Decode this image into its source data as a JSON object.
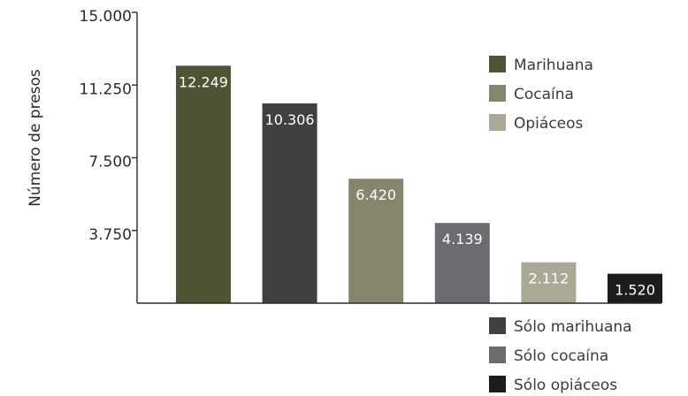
{
  "chart_data": {
    "type": "bar",
    "ylabel": "Número de presos",
    "ylim": [
      0,
      15000
    ],
    "yticks": [
      {
        "value": 3750,
        "label": "3.750"
      },
      {
        "value": 7500,
        "label": "7.500"
      },
      {
        "value": 11250,
        "label": "11.250"
      },
      {
        "value": 15000,
        "label": "15.000"
      }
    ],
    "bars": [
      {
        "value": 12249,
        "label": "12.249",
        "series": "Marihuana",
        "color": "#4e5535"
      },
      {
        "value": 10306,
        "label": "10.306",
        "series": "Sólo marihuana",
        "color": "#3f4042"
      },
      {
        "value": 6420,
        "label": "6.420",
        "series": "Cocaína",
        "color": "#86866f"
      },
      {
        "value": 4139,
        "label": "4.139",
        "series": "Sólo cocaína",
        "color": "#6b6c6f"
      },
      {
        "value": 2112,
        "label": "2.112",
        "series": "Opiáceos",
        "color": "#a9a995"
      },
      {
        "value": 1520,
        "label": "1.520",
        "series": "Sólo opiáceos",
        "color": "#1d1d1f"
      }
    ],
    "legend_top": [
      {
        "name": "Marihuana",
        "color": "#4e5535"
      },
      {
        "name": "Cocaína",
        "color": "#86866f"
      },
      {
        "name": "Opiáceos",
        "color": "#a9a995"
      }
    ],
    "legend_bottom": [
      {
        "name": "Sólo marihuana",
        "color": "#3f4042"
      },
      {
        "name": "Sólo cocaína",
        "color": "#6b6c6f"
      },
      {
        "name": "Sólo opiáceos",
        "color": "#1d1d1f"
      }
    ]
  }
}
